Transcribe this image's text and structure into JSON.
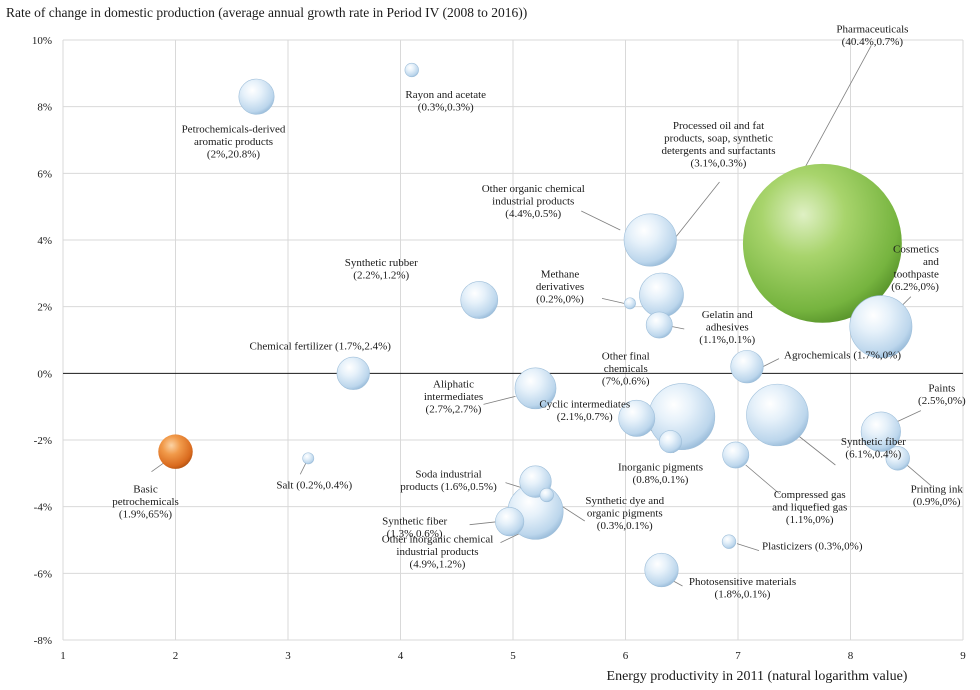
{
  "chart_data": {
    "type": "scatter",
    "title": "Rate of change in domestic production (average annual growth rate in Period IV (2008 to 2016))",
    "xlabel": "Energy productivity in 2011 (natural logarithm value)",
    "ylabel": "",
    "xlim": [
      1,
      9
    ],
    "ylim": [
      -8,
      10
    ],
    "xticks": [
      "1",
      "2",
      "3",
      "4",
      "5",
      "6",
      "7",
      "8",
      "9"
    ],
    "yticks": [
      "-8%",
      "-6%",
      "-4%",
      "-2%",
      "0%",
      "2%",
      "4%",
      "6%",
      "8%",
      "10%"
    ],
    "grid": true,
    "bubble_size_note": "bubble area proportional to first value in parentheses",
    "colors": {
      "default": "#c9dff0",
      "pharmaceuticals": "#7bb84a",
      "basic_petrochemicals": "#e07b2a"
    },
    "points": [
      {
        "name": "Rayon and acetate",
        "label": [
          "Rayon and acetate",
          "(0.3%,0.3%)"
        ],
        "x": 4.1,
        "y": 9.1,
        "share": 0.3,
        "color": "default"
      },
      {
        "name": "Petrochemicals-derived aromatic products",
        "label": [
          "Petrochemicals-derived",
          "aromatic products",
          "(2%,20.8%)"
        ],
        "x": 2.72,
        "y": 8.3,
        "share": 2.0,
        "color": "default"
      },
      {
        "name": "Pharmaceuticals",
        "label": [
          "Pharmaceuticals",
          "(40.4%,0.7%)"
        ],
        "x": 7.75,
        "y": 3.9,
        "share": 40.4,
        "color": "pharmaceuticals"
      },
      {
        "name": "Processed oil and fat products, soap, synthetic detergents and surfactants",
        "label": [
          "Processed oil and fat",
          "products, soap, synthetic",
          "detergents and surfactants",
          "(3.1%,0.3%)"
        ],
        "x": 6.32,
        "y": 2.35,
        "share": 3.1,
        "color": "default"
      },
      {
        "name": "Other organic chemical industrial products",
        "label": [
          "Other organic chemical",
          "industrial products",
          "(4.4%,0.5%)"
        ],
        "x": 6.22,
        "y": 4.0,
        "share": 4.4,
        "color": "default"
      },
      {
        "name": "Cosmetics and toothpaste",
        "label": [
          "Cosmetics",
          "and",
          "toothpaste",
          "(6.2%,0%)"
        ],
        "x": 8.27,
        "y": 1.4,
        "share": 6.2,
        "color": "default"
      },
      {
        "name": "Synthetic rubber",
        "label": [
          "Synthetic rubber",
          "(2.2%,1.2%)"
        ],
        "x": 4.7,
        "y": 2.2,
        "share": 2.2,
        "color": "default"
      },
      {
        "name": "Methane derivatives",
        "label": [
          "Methane",
          "derivatives",
          "(0.2%,0%)"
        ],
        "x": 6.04,
        "y": 2.1,
        "share": 0.2,
        "color": "default"
      },
      {
        "name": "Gelatin and adhesives",
        "label": [
          "Gelatin and",
          "adhesives",
          "(1.1%,0.1%)"
        ],
        "x": 6.3,
        "y": 1.45,
        "share": 1.1,
        "color": "default"
      },
      {
        "name": "Chemical fertilizer",
        "label": [
          "Chemical fertilizer (1.7%,2.4%)"
        ],
        "x": 3.58,
        "y": 0.0,
        "share": 1.7,
        "color": "default"
      },
      {
        "name": "Other final chemicals",
        "label": [
          "Other final",
          "chemicals",
          "(7%,0.6%)"
        ],
        "x": 6.5,
        "y": -1.3,
        "share": 7.0,
        "color": "default"
      },
      {
        "name": "Agrochemicals",
        "label": [
          "Agrochemicals (1.7%,0%)"
        ],
        "x": 7.08,
        "y": 0.2,
        "share": 1.7,
        "color": "default"
      },
      {
        "name": "Aliphatic intermediates",
        "label": [
          "Aliphatic",
          "intermediates",
          "(2.7%,2.7%)"
        ],
        "x": 5.2,
        "y": -0.45,
        "share": 2.7,
        "color": "default"
      },
      {
        "name": "Paints",
        "label": [
          "Paints",
          "(2.5%,0%)"
        ],
        "x": 8.27,
        "y": -1.75,
        "share": 2.5,
        "color": "default"
      },
      {
        "name": "Cyclic intermediates",
        "label": [
          "Cyclic intermediates",
          "(2.1%,0.7%)"
        ],
        "x": 6.1,
        "y": -1.35,
        "share": 2.1,
        "color": "default"
      },
      {
        "name": "Synthetic fiber",
        "label": [
          "Synthetic fiber",
          "(6.1%,0.4%)"
        ],
        "x": 7.35,
        "y": -1.25,
        "share": 6.1,
        "color": "default"
      },
      {
        "name": "Basic petrochemicals",
        "label": [
          "Basic",
          "petrochemicals",
          "(1.9%,65%)"
        ],
        "x": 2.0,
        "y": -2.35,
        "share": 1.9,
        "color": "basic_petrochemicals"
      },
      {
        "name": "Inorganic pigments",
        "label": [
          "Inorganic pigments",
          "(0.8%,0.1%)"
        ],
        "x": 6.4,
        "y": -2.05,
        "share": 0.8,
        "color": "default"
      },
      {
        "name": "Compressed gas and liquefied gas",
        "label": [
          "Compressed gas",
          "and liquefied gas",
          "(1.1%,0%)"
        ],
        "x": 6.98,
        "y": -2.45,
        "share": 1.1,
        "color": "default"
      },
      {
        "name": "Printing ink",
        "label": [
          "Printing ink",
          "(0.9%,0%)"
        ],
        "x": 8.42,
        "y": -2.55,
        "share": 0.9,
        "color": "default"
      },
      {
        "name": "Salt",
        "label": [
          "Salt (0.2%,0.4%)"
        ],
        "x": 3.18,
        "y": -2.55,
        "share": 0.2,
        "color": "default"
      },
      {
        "name": "Soda industrial products",
        "label": [
          "Soda industrial",
          "products (1.6%,0.5%)"
        ],
        "x": 5.2,
        "y": -3.25,
        "share": 1.6,
        "color": "default"
      },
      {
        "name": "Synthetic dye and organic pigments",
        "label": [
          "Synthetic dye and",
          "organic pigments",
          "(0.3%,0.1%)"
        ],
        "x": 5.3,
        "y": -3.65,
        "share": 0.3,
        "color": "default"
      },
      {
        "name": "Synthetic fiber (1.3%)",
        "label": [
          "Synthetic fiber",
          "(1.3%,0.6%)"
        ],
        "x": 4.97,
        "y": -4.45,
        "share": 1.3,
        "color": "default"
      },
      {
        "name": "Other inorganic chemical industrial products",
        "label": [
          "Other inorganic chemical",
          "industrial products",
          "(4.9%,1.2%)"
        ],
        "x": 5.2,
        "y": -4.15,
        "share": 4.9,
        "color": "default"
      },
      {
        "name": "Plasticizers",
        "label": [
          "Plasticizers (0.3%,0%)"
        ],
        "x": 6.92,
        "y": -5.05,
        "share": 0.3,
        "color": "default"
      },
      {
        "name": "Photosensitive materials",
        "label": [
          "Photosensitive materials",
          "(1.8%,0.1%)"
        ],
        "x": 6.32,
        "y": -5.9,
        "share": 1.8,
        "color": "default"
      }
    ]
  }
}
